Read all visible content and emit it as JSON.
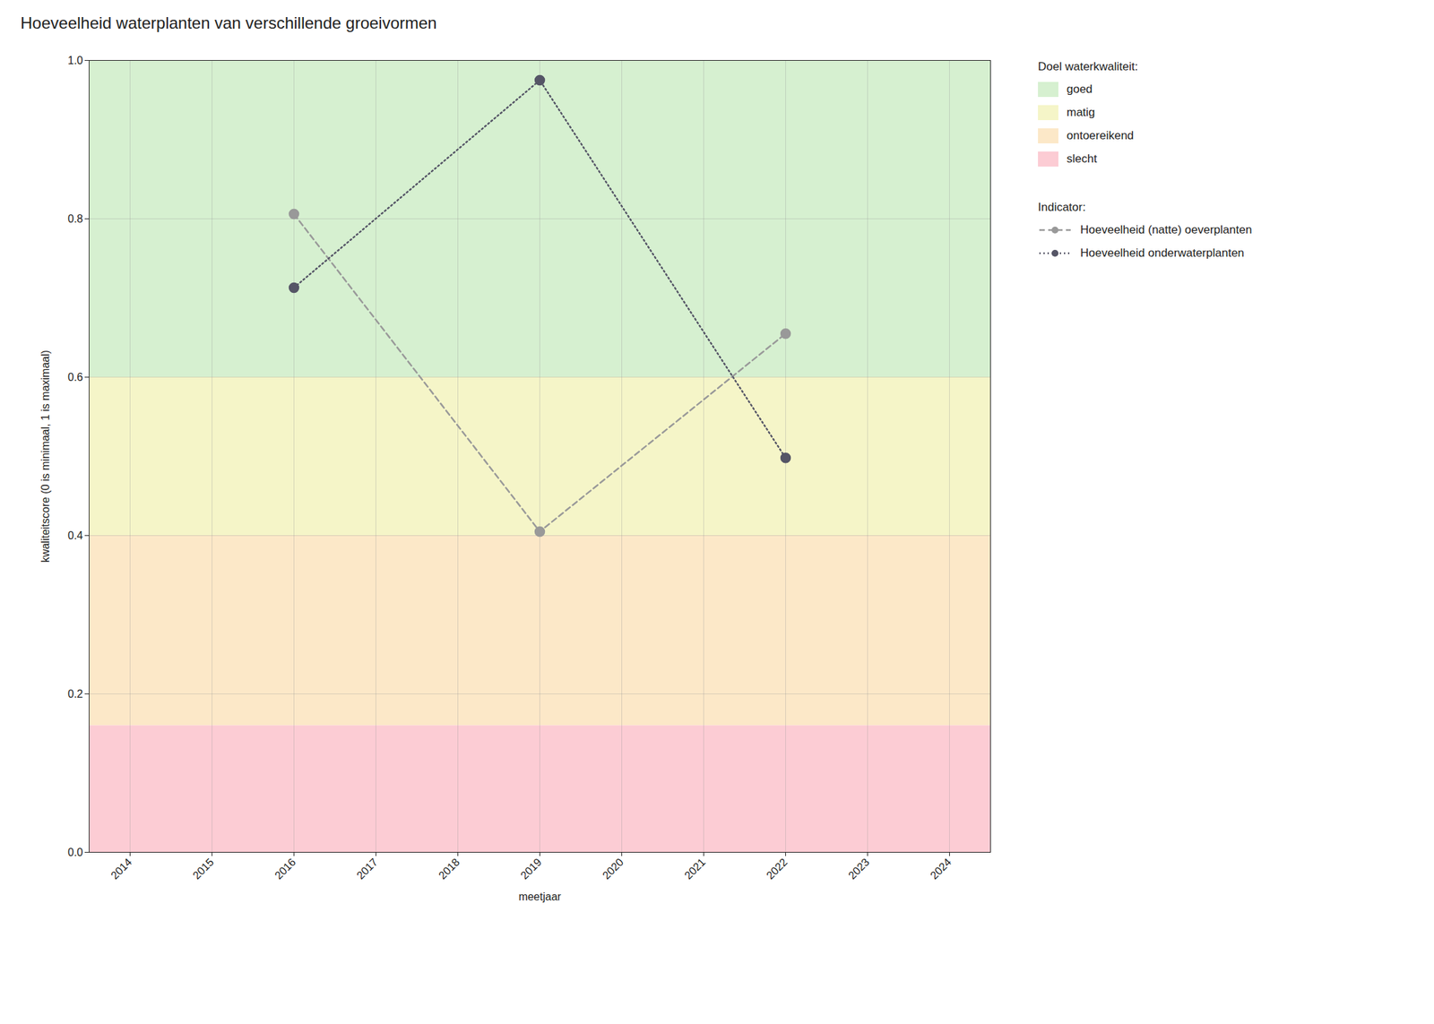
{
  "chart_data": {
    "type": "line",
    "title": "Hoeveelheid waterplanten van verschillende groeivormen",
    "x_label": "meetjaar",
    "y_label": "kwaliteitscore (0 is minimaal, 1 is maximaal)",
    "x": [
      2016,
      2019,
      2022
    ],
    "series": [
      {
        "name": "Hoeveelheid (natte) oeverplanten",
        "color": "#999999",
        "values": [
          0.806,
          0.405,
          0.655
        ],
        "line_style": "dashed",
        "marker": "circle"
      },
      {
        "name": "Hoeveelheid onderwaterplanten",
        "color": "#555566",
        "values": [
          0.713,
          0.975,
          0.498
        ],
        "line_style": "dotted",
        "marker": "circle"
      }
    ],
    "xlim": [
      2013.5,
      2024.5
    ],
    "ylim": [
      0.0,
      1.0
    ],
    "xticks": [
      2014,
      2015,
      2016,
      2017,
      2018,
      2019,
      2020,
      2021,
      2022,
      2023,
      2024
    ],
    "yticks": [
      {
        "value": 0.0,
        "label": "0.0"
      },
      0.2,
      0.4,
      0.6,
      0.8,
      {
        "value": 1.0,
        "label": "1.0"
      }
    ],
    "grid": true,
    "bands_title": "Doel waterkwaliteit:",
    "bands": [
      {
        "name": "goed",
        "color": "#d6f0d0",
        "range": [
          0.6,
          1.0
        ]
      },
      {
        "name": "matig",
        "color": "#f5f5c8",
        "range": [
          0.4,
          0.6
        ]
      },
      {
        "name": "ontoereikend",
        "color": "#fce8c8",
        "range": [
          0.16,
          0.4
        ]
      },
      {
        "name": "slecht",
        "color": "#fcccd4",
        "range": [
          0.0,
          0.16
        ]
      }
    ],
    "legend_title": "Indicator:"
  }
}
